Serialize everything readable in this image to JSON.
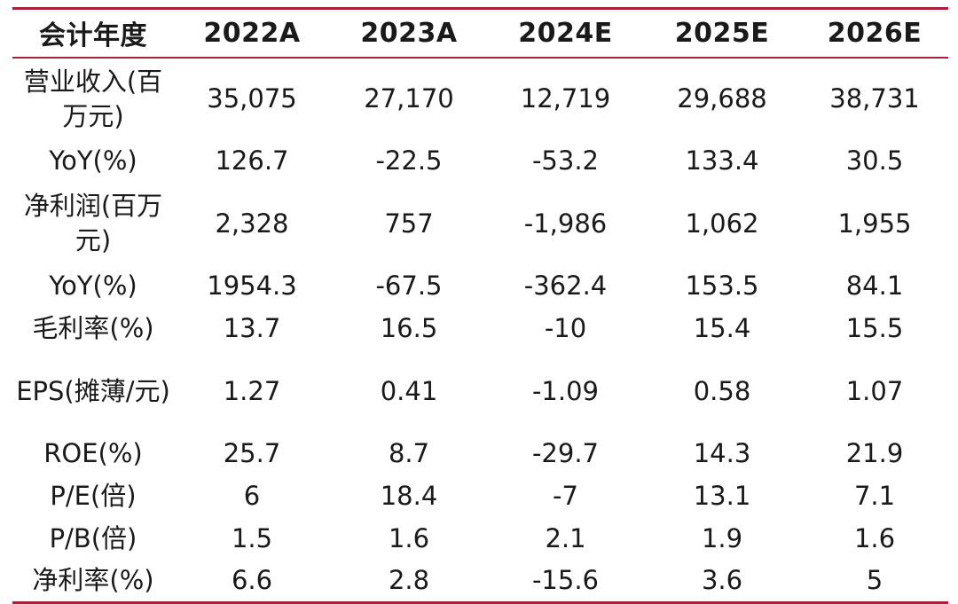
{
  "table": {
    "headers": [
      "会计年度",
      "2022A",
      "2023A",
      "2024E",
      "2025E",
      "2026E"
    ],
    "rows": [
      {
        "label": "营业收入(百万元)",
        "values": [
          "35,075",
          "27,170",
          "12,719",
          "29,688",
          "38,731"
        ]
      },
      {
        "label": "YoY(%)",
        "values": [
          "126.7",
          "-22.5",
          "-53.2",
          "133.4",
          "30.5"
        ]
      },
      {
        "label": "净利润(百万元)",
        "values": [
          "2,328",
          "757",
          "-1,986",
          "1,062",
          "1,955"
        ]
      },
      {
        "label": "YoY(%)",
        "values": [
          "1954.3",
          "-67.5",
          "-362.4",
          "153.5",
          "84.1"
        ]
      },
      {
        "label": "毛利率(%)",
        "values": [
          "13.7",
          "16.5",
          "-10",
          "15.4",
          "15.5"
        ]
      },
      {
        "label": "EPS(摊薄/元)",
        "values": [
          "1.27",
          "0.41",
          "-1.09",
          "0.58",
          "1.07"
        ]
      },
      {
        "label": "ROE(%)",
        "values": [
          "25.7",
          "8.7",
          "-29.7",
          "14.3",
          "21.9"
        ]
      },
      {
        "label": "P/E(倍)",
        "values": [
          "6",
          "18.4",
          "-7",
          "13.1",
          "7.1"
        ]
      },
      {
        "label": "P/B(倍)",
        "values": [
          "1.5",
          "1.6",
          "2.1",
          "1.9",
          "1.6"
        ]
      },
      {
        "label": "净利率(%)",
        "values": [
          "6.6",
          "2.8",
          "-15.6",
          "3.6",
          "5"
        ]
      }
    ]
  },
  "colors": {
    "rule": "#a8203a",
    "text": "#1a1a1a"
  }
}
